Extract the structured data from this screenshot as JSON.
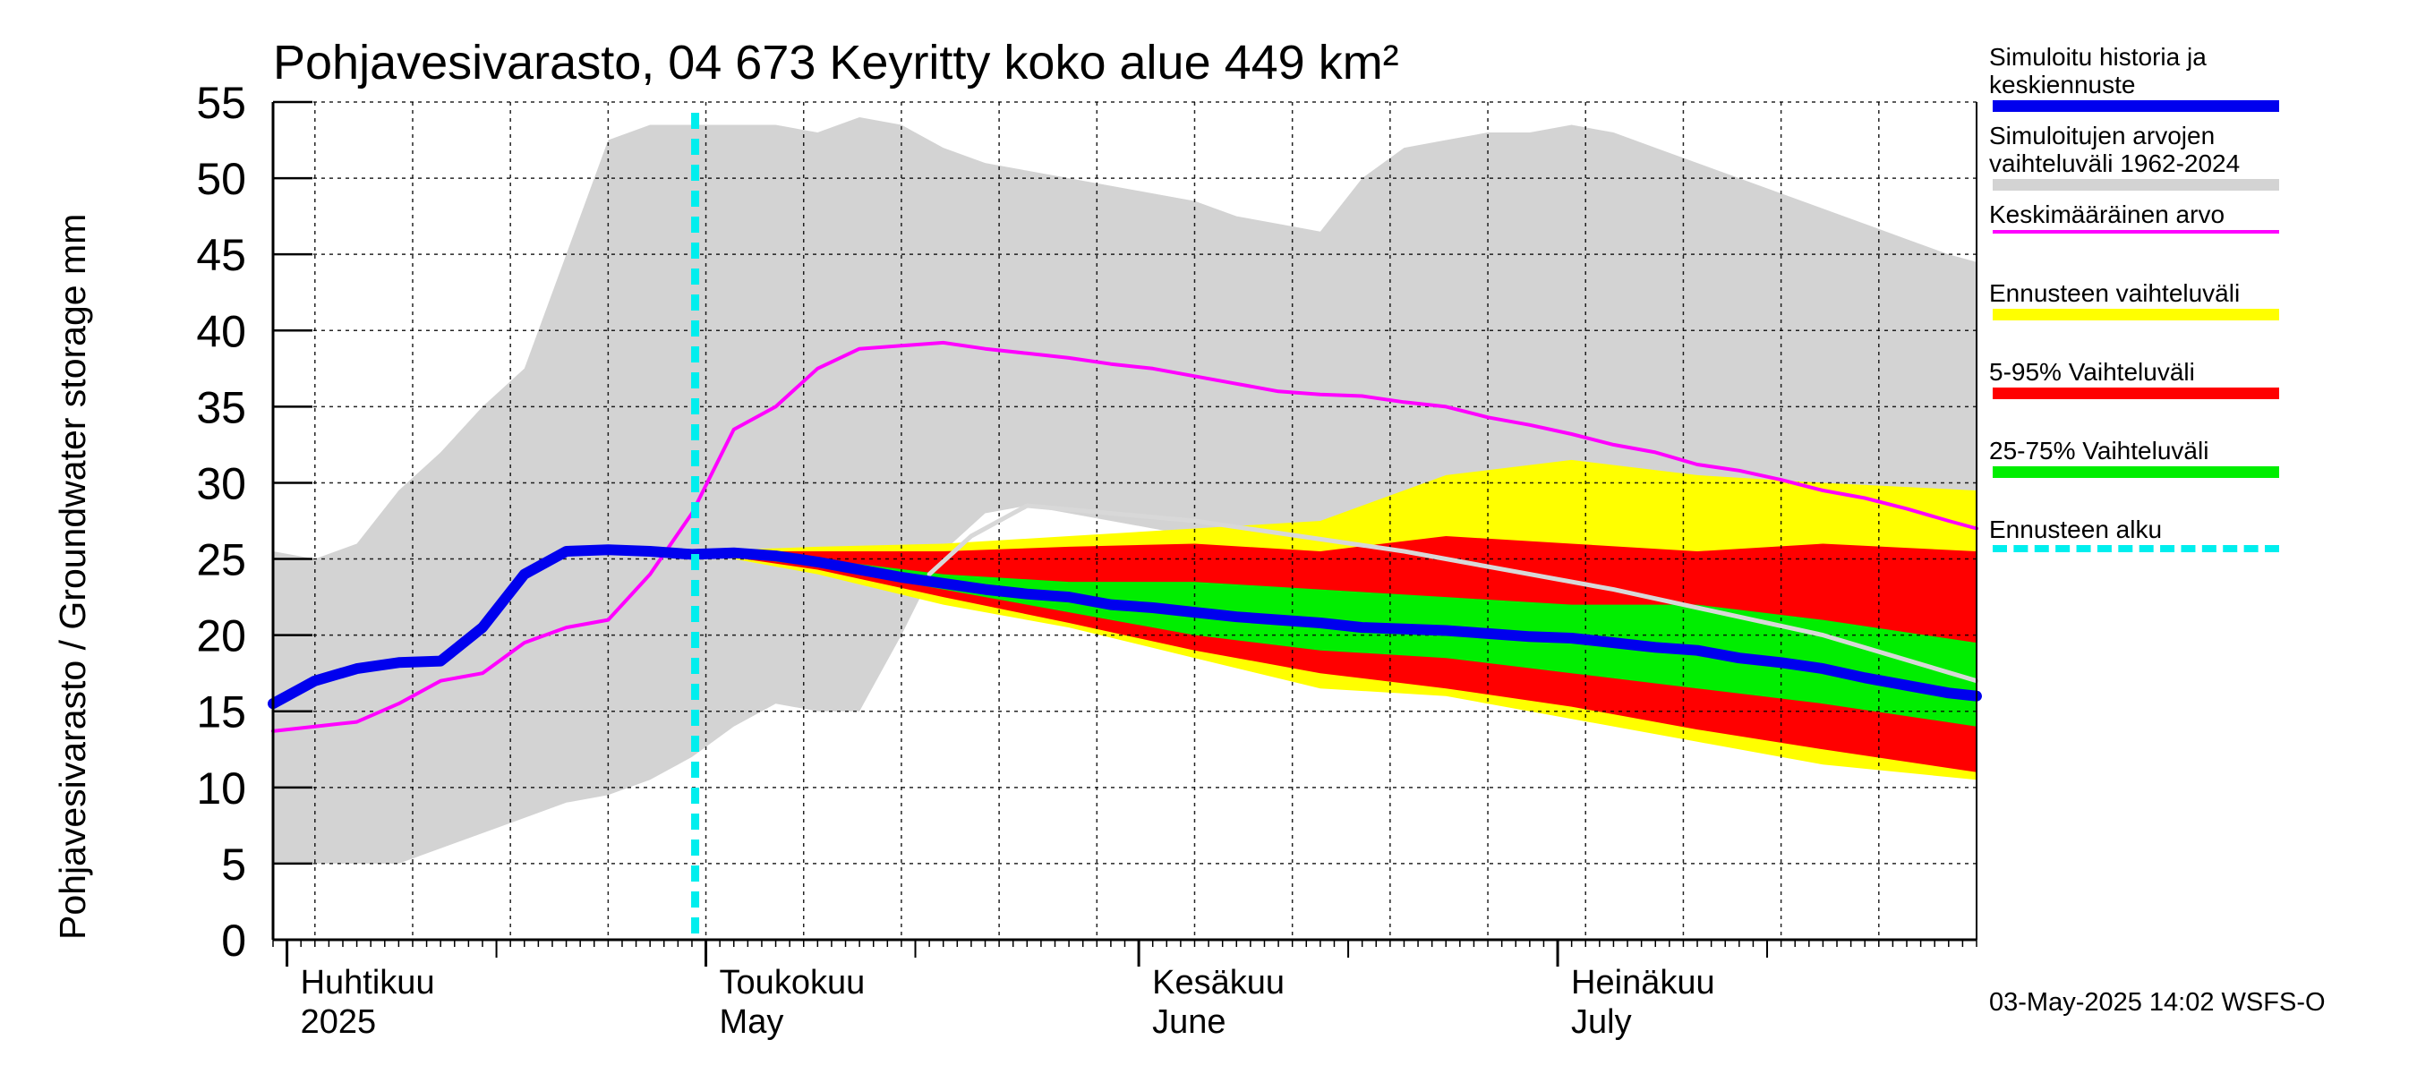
{
  "chart_data": {
    "type": "area",
    "title": "Pohjavesivarasto, 04 673 Keyritty koko alue 449 km²",
    "ylabel": "Pohjavesivarasto / Groundwater storage   mm",
    "ylim": [
      0,
      55
    ],
    "yticks": [
      0,
      5,
      10,
      15,
      20,
      25,
      30,
      35,
      40,
      45,
      50,
      55
    ],
    "x_range": [
      "2025-03-31",
      "2025-07-31"
    ],
    "months": [
      {
        "fi": "Huhtikuu",
        "en": "2025",
        "start": "2025-04-01"
      },
      {
        "fi": "Toukokuu",
        "en": "May",
        "start": "2025-05-01"
      },
      {
        "fi": "Kesäkuu",
        "en": "June",
        "start": "2025-06-01"
      },
      {
        "fi": "Heinäkuu",
        "en": "July",
        "start": "2025-07-01"
      }
    ],
    "forecast_start": "2025-05-01",
    "grid": true,
    "legend_position": "right",
    "timestamp": "03-May-2025 14:02 WSFS-O",
    "series": [
      {
        "name": "Simuloitujen arvojen vaihteluväli 1962-2024",
        "kind": "band",
        "color": "#d3d3d3",
        "x": [
          "2025-03-31",
          "2025-04-03",
          "2025-04-06",
          "2025-04-09",
          "2025-04-12",
          "2025-04-15",
          "2025-04-18",
          "2025-04-21",
          "2025-04-24",
          "2025-04-27",
          "2025-04-30",
          "2025-05-03",
          "2025-05-06",
          "2025-05-09",
          "2025-05-12",
          "2025-05-15",
          "2025-05-18",
          "2025-05-21",
          "2025-05-24",
          "2025-05-27",
          "2025-05-30",
          "2025-06-02",
          "2025-06-05",
          "2025-06-08",
          "2025-06-11",
          "2025-06-14",
          "2025-06-17",
          "2025-06-20",
          "2025-06-23",
          "2025-06-26",
          "2025-06-29",
          "2025-07-02",
          "2025-07-05",
          "2025-07-08",
          "2025-07-11",
          "2025-07-14",
          "2025-07-17",
          "2025-07-20",
          "2025-07-23",
          "2025-07-26",
          "2025-07-29",
          "2025-07-31"
        ],
        "upper": [
          25.5,
          25,
          26,
          29.5,
          32,
          35,
          37.5,
          45,
          52.5,
          53.5,
          53.5,
          53.5,
          53.5,
          53,
          54,
          53.5,
          52,
          51,
          50.5,
          50,
          49.5,
          49,
          48.5,
          47.5,
          47,
          46.5,
          50,
          52,
          52.5,
          53,
          53,
          53.5,
          53,
          52,
          51,
          50,
          49,
          48,
          47,
          46,
          45,
          44.5
        ],
        "lower": [
          5,
          5,
          5,
          5,
          6,
          7,
          8,
          9,
          9.5,
          10.5,
          12,
          14,
          15.5,
          15,
          15,
          20,
          25.5,
          28,
          28.5,
          28,
          27.5,
          27,
          26.5,
          26,
          26,
          25.5,
          25,
          24.5,
          24,
          23.5,
          23,
          22.5,
          22,
          21.5,
          21,
          20.5,
          20,
          19,
          18.5,
          18,
          17.5,
          17
        ]
      },
      {
        "name": "Ennusteen vaihteluväli",
        "kind": "band",
        "color": "#ffff00",
        "x": [
          "2025-04-30",
          "2025-05-09",
          "2025-05-18",
          "2025-05-27",
          "2025-06-05",
          "2025-06-14",
          "2025-06-23",
          "2025-07-02",
          "2025-07-11",
          "2025-07-20",
          "2025-07-31"
        ],
        "upper": [
          25.5,
          25.8,
          26,
          26.5,
          27,
          27.5,
          30.5,
          31.5,
          30.5,
          30,
          29.5
        ],
        "lower": [
          25.5,
          24,
          22,
          20.5,
          18.5,
          16.5,
          16,
          14.5,
          13,
          11.5,
          10.5
        ]
      },
      {
        "name": "5-95% Vaihteluväli",
        "kind": "band",
        "color": "#ff0000",
        "x": [
          "2025-04-30",
          "2025-05-09",
          "2025-05-18",
          "2025-05-27",
          "2025-06-05",
          "2025-06-14",
          "2025-06-23",
          "2025-07-02",
          "2025-07-11",
          "2025-07-20",
          "2025-07-31"
        ],
        "upper": [
          25.5,
          25.5,
          25.5,
          25.8,
          26,
          25.5,
          26.5,
          26,
          25.5,
          26,
          25.5
        ],
        "lower": [
          25.5,
          24.3,
          22.5,
          20.8,
          19,
          17.5,
          16.5,
          15.3,
          13.8,
          12.5,
          11
        ]
      },
      {
        "name": "25-75% Vaihteluväli",
        "kind": "band",
        "color": "#00ee00",
        "x": [
          "2025-04-30",
          "2025-05-09",
          "2025-05-18",
          "2025-05-27",
          "2025-06-05",
          "2025-06-14",
          "2025-06-23",
          "2025-07-02",
          "2025-07-11",
          "2025-07-20",
          "2025-07-31"
        ],
        "upper": [
          25.5,
          25,
          24,
          23.5,
          23.5,
          23,
          22.5,
          22,
          22,
          21,
          19.5
        ],
        "lower": [
          25.5,
          24.5,
          23,
          21.5,
          20,
          19,
          18.5,
          17.5,
          16.5,
          15.5,
          14
        ]
      },
      {
        "name": "Keskimääräinen arvo",
        "kind": "line",
        "color": "#ff00ff",
        "width": 4,
        "x": [
          "2025-03-31",
          "2025-04-03",
          "2025-04-06",
          "2025-04-09",
          "2025-04-12",
          "2025-04-15",
          "2025-04-18",
          "2025-04-21",
          "2025-04-24",
          "2025-04-27",
          "2025-04-30",
          "2025-05-03",
          "2025-05-06",
          "2025-05-09",
          "2025-05-12",
          "2025-05-15",
          "2025-05-18",
          "2025-05-21",
          "2025-05-24",
          "2025-05-27",
          "2025-05-30",
          "2025-06-02",
          "2025-06-05",
          "2025-06-08",
          "2025-06-11",
          "2025-06-14",
          "2025-06-17",
          "2025-06-20",
          "2025-06-23",
          "2025-06-26",
          "2025-06-29",
          "2025-07-02",
          "2025-07-05",
          "2025-07-08",
          "2025-07-11",
          "2025-07-14",
          "2025-07-17",
          "2025-07-20",
          "2025-07-23",
          "2025-07-26",
          "2025-07-29",
          "2025-07-31"
        ],
        "values": [
          13.7,
          14,
          14.3,
          15.5,
          17,
          17.5,
          19.5,
          20.5,
          21,
          24,
          28,
          33.5,
          35,
          37.5,
          38.8,
          39,
          39.2,
          38.8,
          38.5,
          38.2,
          37.8,
          37.5,
          37,
          36.5,
          36,
          35.8,
          35.7,
          35.3,
          35,
          34.3,
          33.8,
          33.2,
          32.5,
          32,
          31.2,
          30.8,
          30.2,
          29.5,
          29,
          28.3,
          27.5,
          27
        ]
      },
      {
        "name": "Simuloitu historia ja keskiennuste (sim. mean)",
        "kind": "line",
        "color": "#d8d8d8",
        "width": 5,
        "legend": false,
        "x": [
          "2025-05-17",
          "2025-05-20",
          "2025-05-24",
          "2025-06-05",
          "2025-06-20",
          "2025-07-05",
          "2025-07-20",
          "2025-07-31"
        ],
        "values": [
          24,
          26.5,
          28.5,
          27.5,
          25.5,
          23,
          20,
          17
        ]
      },
      {
        "name": "Simuloitu historia ja keskiennuste",
        "kind": "line",
        "color": "#0000ee",
        "width": 12,
        "x": [
          "2025-03-31",
          "2025-04-03",
          "2025-04-06",
          "2025-04-09",
          "2025-04-12",
          "2025-04-15",
          "2025-04-18",
          "2025-04-21",
          "2025-04-24",
          "2025-04-27",
          "2025-04-30",
          "2025-05-03",
          "2025-05-06",
          "2025-05-09",
          "2025-05-12",
          "2025-05-15",
          "2025-05-18",
          "2025-05-21",
          "2025-05-24",
          "2025-05-27",
          "2025-05-30",
          "2025-06-02",
          "2025-06-05",
          "2025-06-08",
          "2025-06-11",
          "2025-06-14",
          "2025-06-17",
          "2025-06-20",
          "2025-06-23",
          "2025-06-26",
          "2025-06-29",
          "2025-07-02",
          "2025-07-05",
          "2025-07-08",
          "2025-07-11",
          "2025-07-14",
          "2025-07-17",
          "2025-07-20",
          "2025-07-23",
          "2025-07-26",
          "2025-07-29",
          "2025-07-31"
        ],
        "values": [
          15.5,
          17,
          17.8,
          18.2,
          18.3,
          20.5,
          24,
          25.5,
          25.6,
          25.5,
          25.3,
          25.4,
          25.2,
          24.8,
          24.3,
          23.8,
          23.4,
          23,
          22.7,
          22.5,
          22,
          21.8,
          21.5,
          21.2,
          21,
          20.8,
          20.5,
          20.4,
          20.3,
          20.1,
          19.9,
          19.8,
          19.5,
          19.2,
          19,
          18.5,
          18.2,
          17.8,
          17.2,
          16.7,
          16.2,
          16
        ]
      }
    ],
    "legend": [
      {
        "label": "Simuloitu historia ja\nkeskiennuste",
        "color": "#0000ee",
        "style": "solid"
      },
      {
        "label": "Simuloitujen arvojen\nvaihteluväli 1962-2024",
        "color": "#d3d3d3",
        "style": "solid"
      },
      {
        "label": "Keskimääräinen arvo",
        "color": "#ff00ff",
        "style": "thin"
      },
      {
        "label": "Ennusteen vaihteluväli",
        "color": "#ffff00",
        "style": "solid"
      },
      {
        "label": "5-95% Vaihteluväli",
        "color": "#ff0000",
        "style": "solid"
      },
      {
        "label": "25-75% Vaihteluväli",
        "color": "#00ee00",
        "style": "solid"
      },
      {
        "label": "Ennusteen alku",
        "color": "#00eeee",
        "style": "dashed"
      }
    ]
  }
}
